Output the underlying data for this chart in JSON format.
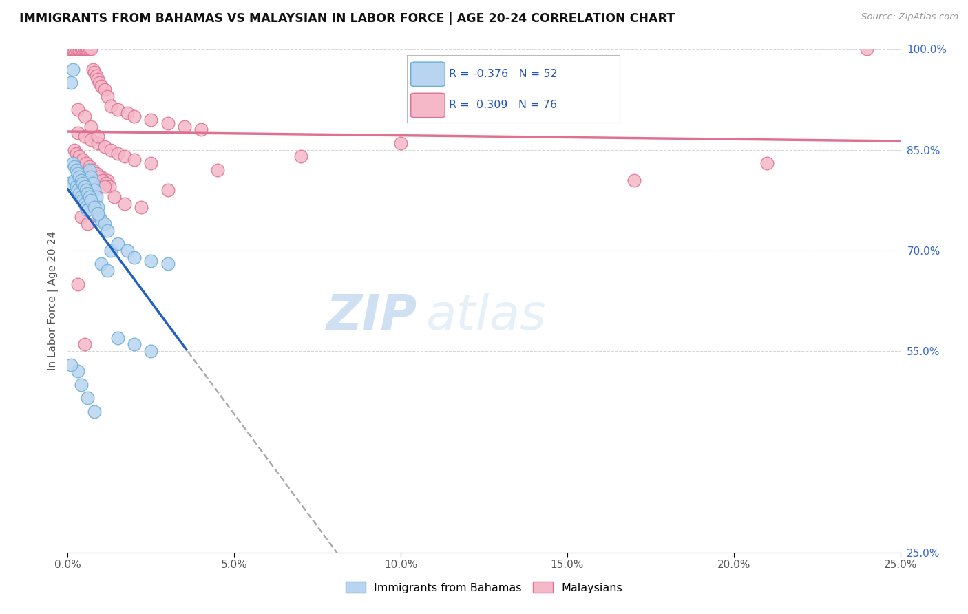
{
  "title": "IMMIGRANTS FROM BAHAMAS VS MALAYSIAN IN LABOR FORCE | AGE 20-24 CORRELATION CHART",
  "source": "Source: ZipAtlas.com",
  "ylabel": "In Labor Force | Age 20-24",
  "x_range": [
    0.0,
    25.0
  ],
  "y_range": [
    25.0,
    100.0
  ],
  "x_ticks": [
    0.0,
    5.0,
    10.0,
    15.0,
    20.0,
    25.0
  ],
  "y_ticks": [
    25.0,
    55.0,
    70.0,
    85.0,
    100.0
  ],
  "bahamas_R": -0.376,
  "bahamas_N": 52,
  "malaysia_R": 0.309,
  "malaysia_N": 76,
  "bahamas_x": [
    0.05,
    0.1,
    0.15,
    0.2,
    0.25,
    0.3,
    0.35,
    0.4,
    0.45,
    0.5,
    0.55,
    0.6,
    0.65,
    0.7,
    0.75,
    0.8,
    0.85,
    0.9,
    0.95,
    1.0,
    1.1,
    1.2,
    1.3,
    1.5,
    1.8,
    2.0,
    2.5,
    3.0,
    0.15,
    0.2,
    0.25,
    0.3,
    0.35,
    0.4,
    0.45,
    0.5,
    0.55,
    0.6,
    0.65,
    0.7,
    0.8,
    0.9,
    1.0,
    1.2,
    1.5,
    2.0,
    2.5,
    0.3,
    0.4,
    0.1,
    0.6,
    0.8
  ],
  "bahamas_y": [
    80.0,
    95.0,
    97.0,
    80.5,
    79.5,
    79.0,
    78.5,
    78.0,
    77.5,
    77.0,
    76.5,
    76.0,
    82.0,
    81.0,
    80.0,
    79.0,
    78.0,
    76.5,
    75.0,
    74.5,
    74.0,
    73.0,
    70.0,
    71.0,
    70.0,
    69.0,
    68.5,
    68.0,
    83.0,
    82.5,
    82.0,
    81.5,
    81.0,
    80.5,
    80.0,
    79.5,
    79.0,
    78.5,
    78.0,
    77.5,
    76.5,
    75.5,
    68.0,
    67.0,
    57.0,
    56.0,
    55.0,
    52.0,
    50.0,
    53.0,
    48.0,
    46.0
  ],
  "malaysia_x": [
    0.05,
    0.1,
    0.15,
    0.2,
    0.25,
    0.3,
    0.35,
    0.4,
    0.45,
    0.5,
    0.55,
    0.6,
    0.65,
    0.7,
    0.75,
    0.8,
    0.85,
    0.9,
    0.95,
    1.0,
    1.1,
    1.2,
    1.3,
    1.5,
    1.8,
    2.0,
    2.5,
    3.0,
    3.5,
    4.0,
    0.3,
    0.5,
    0.7,
    0.9,
    1.1,
    1.3,
    1.5,
    1.7,
    2.0,
    2.5,
    0.4,
    0.6,
    0.8,
    1.0,
    1.2,
    0.2,
    0.25,
    0.35,
    0.45,
    0.55,
    0.65,
    0.75,
    0.85,
    0.95,
    1.05,
    1.15,
    1.25,
    3.0,
    4.5,
    7.0,
    10.0,
    17.0,
    21.0,
    24.0,
    0.3,
    0.5,
    0.7,
    0.9,
    1.1,
    1.4,
    1.7,
    2.2,
    0.4,
    0.6,
    0.3,
    0.5
  ],
  "malaysia_y": [
    100.0,
    100.0,
    100.0,
    100.0,
    100.0,
    100.0,
    100.0,
    100.0,
    100.0,
    100.0,
    100.0,
    100.0,
    100.0,
    100.0,
    97.0,
    96.5,
    96.0,
    95.5,
    95.0,
    94.5,
    94.0,
    93.0,
    91.5,
    91.0,
    90.5,
    90.0,
    89.5,
    89.0,
    88.5,
    88.0,
    87.5,
    87.0,
    86.5,
    86.0,
    85.5,
    85.0,
    84.5,
    84.0,
    83.5,
    83.0,
    82.5,
    82.0,
    81.5,
    81.0,
    80.5,
    85.0,
    84.5,
    84.0,
    83.5,
    83.0,
    82.5,
    82.0,
    81.5,
    81.0,
    80.5,
    80.0,
    79.5,
    79.0,
    82.0,
    84.0,
    86.0,
    80.5,
    83.0,
    100.0,
    91.0,
    90.0,
    88.5,
    87.0,
    79.5,
    78.0,
    77.0,
    76.5,
    75.0,
    74.0,
    65.0,
    56.0
  ],
  "bahamas_color": "#b8d4f0",
  "bahamas_edge": "#6baed6",
  "malaysia_color": "#f4b8c8",
  "malaysia_edge": "#e07090",
  "trendline_bahamas_color": "#2060c0",
  "trendline_malaysia_color": "#e07090",
  "trendline_dashed_color": "#aaaaaa",
  "watermark_zip": "ZIP",
  "watermark_atlas": "atlas",
  "background_color": "#ffffff",
  "grid_color": "#cccccc"
}
